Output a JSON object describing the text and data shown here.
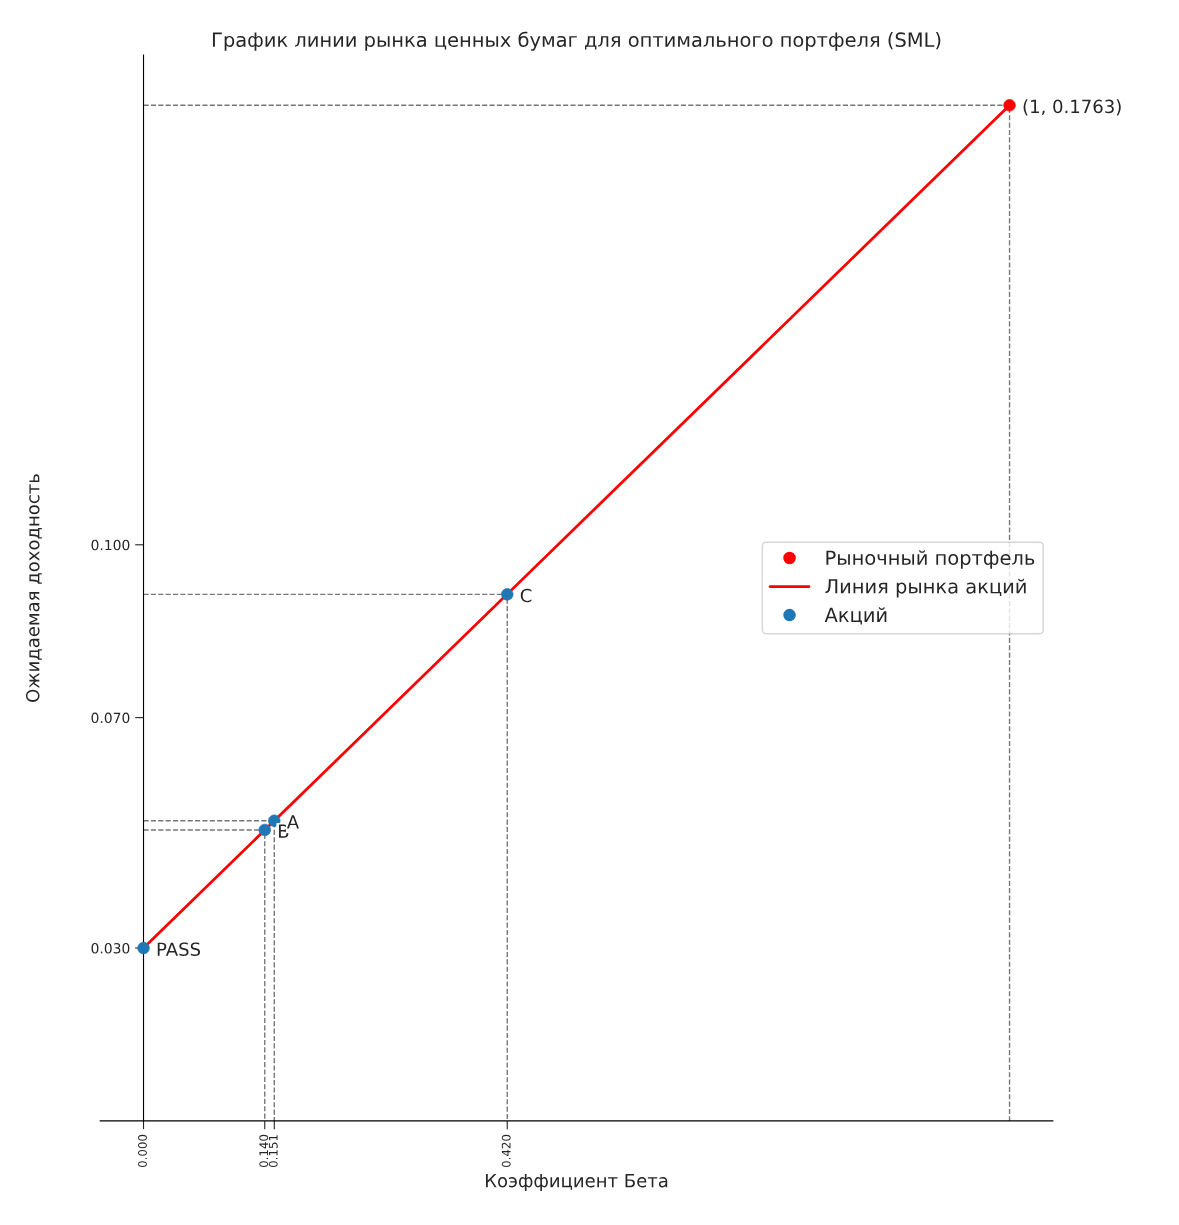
{
  "chart_data": {
    "type": "scatter",
    "title": "График линии рынка ценных бумаг для оптимального портфеля (SML)",
    "xlabel": "Коэффициент Бета",
    "ylabel": "Ожидаемая доходность",
    "xlim": [
      -0.05,
      1.05
    ],
    "ylim": [
      0,
      0.185
    ],
    "xticks": [
      {
        "value": 0,
        "label": "0.000"
      },
      {
        "value": 0.14,
        "label": "0.140"
      },
      {
        "value": 0.151,
        "label": "0.151"
      },
      {
        "value": 0.42,
        "label": "0.420"
      }
    ],
    "yticks": [
      {
        "value": 0.03,
        "label": "0.030"
      },
      {
        "value": 0.07,
        "label": "0.070"
      },
      {
        "value": 0.1,
        "label": "0.100"
      }
    ],
    "grid": false,
    "legend": "right",
    "series": [
      {
        "type": "line",
        "line_style": "dashed",
        "marker": "none",
        "color": "#777777",
        "x": [
          0,
          1,
          1
        ],
        "values": [
          0.1763,
          0.1763,
          0
        ]
      },
      {
        "type": "line",
        "line_style": "dashed",
        "marker": "none",
        "color": "#777777",
        "x": [
          0,
          0.42,
          0.42
        ],
        "values": [
          0.0914,
          0.0914,
          0
        ]
      },
      {
        "type": "line",
        "line_style": "dashed",
        "marker": "none",
        "color": "#777777",
        "x": [
          0,
          0.151,
          0.151
        ],
        "values": [
          0.0521,
          0.0521,
          0
        ]
      },
      {
        "type": "line",
        "line_style": "dashed",
        "marker": "none",
        "color": "#777777",
        "x": [
          0,
          0.14,
          0.14
        ],
        "values": [
          0.0505,
          0.0505,
          0
        ]
      },
      {
        "name": "Рыночный портфель",
        "marker": "circle",
        "color": "#ff0000",
        "x": [
          1
        ],
        "values": [
          0.1763
        ]
      },
      {
        "name": "Линия рынка акций",
        "type": "line",
        "marker": "none",
        "color": "#ff0000",
        "x": [
          0,
          1
        ],
        "values": [
          0.03,
          0.1763
        ]
      },
      {
        "name": "Акций",
        "marker": "circle",
        "color": "#1f77b4",
        "x": [
          0,
          0.14,
          0.151,
          0.42
        ],
        "values": [
          0.03,
          0.0505,
          0.0521,
          0.0914
        ]
      }
    ],
    "annotations": [
      {
        "text": "(1, 0.1763)",
        "x": 1,
        "y": 0.1763
      },
      {
        "text": "PASS",
        "x": 0,
        "y": 0.03
      },
      {
        "text": "B",
        "x": 0.14,
        "y": 0.0505
      },
      {
        "text": "A",
        "x": 0.151,
        "y": 0.0521
      },
      {
        "text": "C",
        "x": 0.42,
        "y": 0.0914
      }
    ]
  }
}
